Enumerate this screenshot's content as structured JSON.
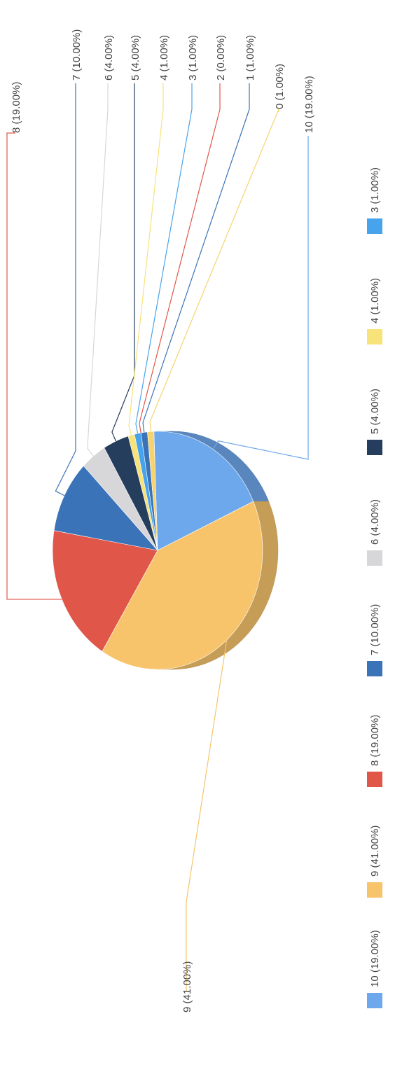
{
  "chart_data": {
    "type": "pie",
    "title": "",
    "label_format": "{name} ({pct})",
    "start_angle_deg": -2,
    "slices": [
      {
        "name": "10",
        "value": 19,
        "pct": "19.00%",
        "color": "#6EA8EC"
      },
      {
        "name": "9",
        "value": 41,
        "pct": "41.00%",
        "color": "#F7C46C"
      },
      {
        "name": "8",
        "value": 19,
        "pct": "19.00%",
        "color": "#E0574A"
      },
      {
        "name": "7",
        "value": 10,
        "pct": "10.00%",
        "color": "#3B73B8"
      },
      {
        "name": "6",
        "value": 4,
        "pct": "4.00%",
        "color": "#D7D7D9"
      },
      {
        "name": "5",
        "value": 4,
        "pct": "4.00%",
        "color": "#253E5E"
      },
      {
        "name": "4",
        "value": 1,
        "pct": "1.00%",
        "color": "#F8E27A"
      },
      {
        "name": "3",
        "value": 1,
        "pct": "1.00%",
        "color": "#47A3EC"
      },
      {
        "name": "2",
        "value": 0,
        "pct": "0.00%",
        "color": "#E0574A"
      },
      {
        "name": "1",
        "value": 1,
        "pct": "1.00%",
        "color": "#3B73B8"
      },
      {
        "name": "0",
        "value": 1,
        "pct": "1.00%",
        "color": "#F7D36F"
      }
    ],
    "legend": {
      "position": "bottom",
      "entries": [
        {
          "label": "10 (19.00%)",
          "color": "#6EA8EC"
        },
        {
          "label": "9 (41.00%)",
          "color": "#F7C46C"
        },
        {
          "label": "8 (19.00%)",
          "color": "#E0574A"
        },
        {
          "label": "7 (10.00%)",
          "color": "#3B73B8"
        },
        {
          "label": "6 (4.00%)",
          "color": "#D7D7D9"
        },
        {
          "label": "5 (4.00%)",
          "color": "#253E5E"
        },
        {
          "label": "4 (1.00%)",
          "color": "#F8E27A"
        },
        {
          "label": "3 (1.00%)",
          "color": "#47A3EC"
        }
      ]
    }
  }
}
